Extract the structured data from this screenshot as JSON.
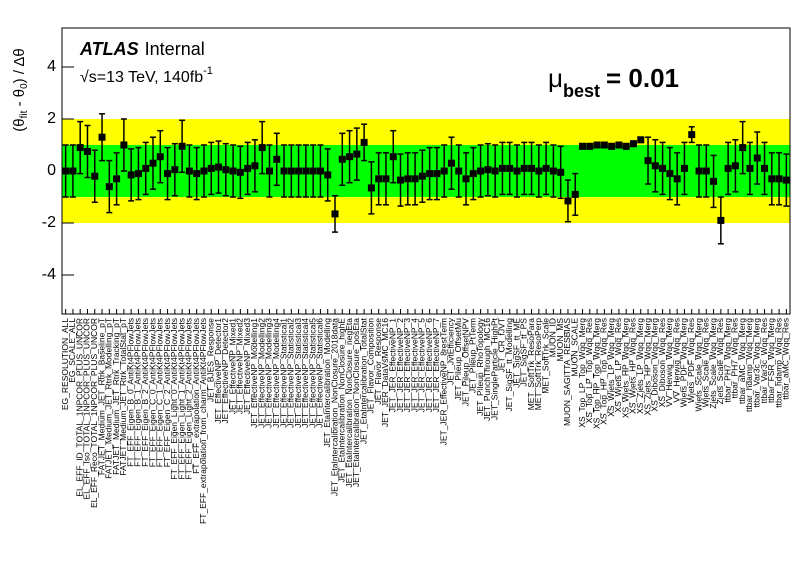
{
  "chart_data": {
    "type": "pull",
    "experiment": "ATLAS",
    "status": "Internal",
    "energy_text": "√s=13 TeV, 140fb",
    "energy_sup": "-1",
    "mu_symbol": "μ",
    "mu_sub": "best",
    "mu_text": "= 0.01",
    "ylabel_parts": [
      "(θ",
      "fit",
      " - θ",
      "0",
      ") / Δθ"
    ],
    "ylim": [
      -5.5,
      5.5
    ],
    "yticks": [
      -4,
      -2,
      0,
      2,
      4
    ],
    "color": "#000000",
    "bands": [
      {
        "lo": -2,
        "hi": 2,
        "color": "#ffff00"
      },
      {
        "lo": -1,
        "hi": 1,
        "color": "#00ff00"
      }
    ],
    "categories": [
      "EG_RESOLUTION_ALL",
      "EG_SCALE_ALL",
      "EL_EFF_ID_TOTAL_1NPCOR_PLUS_UNCOR",
      "EL_EFF_Iso_TOTAL_1NPCOR_PLUS_UNCOR",
      "EL_EFF_Reco_TOTAL_1NPCOR_PLUS_UNCOR",
      "FATJET_Medium_JET_Rtrk_Baseline_pT",
      "FATJET_Medium_JET_Rtrk_Modelling_pT",
      "FATJET_Medium_JET_Rtrk_Tracking_pT",
      "FATJET_Medium_JET_Rtrk_TotalStat_pT",
      "FT_EFF_Eigen_B_0_AntiKt4PFlowJets",
      "FT_EFF_Eigen_B_1_AntiKt4PFlowJets",
      "FT_EFF_Eigen_B_2_AntiKt4PFlowJets",
      "FT_EFF_Eigen_C_0_AntiKt4PFlowJets",
      "FT_EFF_Eigen_C_1_AntiKt4PFlowJets",
      "FT_EFF_Eigen_C_2_AntiKt4PFlowJets",
      "FT_EFF_Eigen_Light_0_AntiKt4PFlowJets",
      "FT_EFF_Eigen_Light_1_AntiKt4PFlowJets",
      "FT_EFF_Eigen_Light_2_AntiKt4PFlowJets",
      "FT_EFF_extrapolation_AntiKt4PFlowJets",
      "FT_EFF_extrapolation_from_charm_AntiKt4PFlowJets",
      "JET_BJES_Response",
      "JET_EffectiveNP_Detector1",
      "JET_EffectiveNP_Detector2",
      "JET_EffectiveNP_Mixed1",
      "JET_EffectiveNP_Mixed2",
      "JET_EffectiveNP_Mixed3",
      "JET_EffectiveNP_Modelling1",
      "JET_EffectiveNP_Modelling2",
      "JET_EffectiveNP_Modelling3",
      "JET_EffectiveNP_Modelling4",
      "JET_EffectiveNP_Statistical1",
      "JET_EffectiveNP_Statistical2",
      "JET_EffectiveNP_Statistical3",
      "JET_EffectiveNP_Statistical4",
      "JET_EffectiveNP_Statistical5",
      "JET_EffectiveNP_Statistical6",
      "JET_EtaIntercalibration_Modelling",
      "JET_EtaIntercalibration_NonClosure_2018data",
      "JET_EtaIntercalibration_NonClosure_highE",
      "JET_EtaIntercalibration_NonClosure_negEta",
      "JET_EtaIntercalibration_NonClosure_posEta",
      "JET_EtaIntercalibration_TotalStat",
      "JET_Flavor_Composition",
      "JET_Flavor_Response",
      "JET_JER_DataVsMC_MC16",
      "JET_JER_EffectiveNP_1",
      "JET_JER_EffectiveNP_2",
      "JET_JER_EffectiveNP_3",
      "JET_JER_EffectiveNP_4",
      "JET_JER_EffectiveNP_5",
      "JET_JER_EffectiveNP_6",
      "JET_JER_EffectiveNP_7",
      "JET_JER_EffectiveNP_8restTerm",
      "JET_JvtEfficiency",
      "JET_Pileup_OffsetMu",
      "JET_Pileup_OffsetNPV",
      "JET_Pileup_PtTerm",
      "JET_Pileup_RhoTopology",
      "JET_PunchThrough_MC16",
      "JET_SingleParticle_HighPt",
      "JET_CR_fJVT",
      "JET_SigSF_tt_Modelling",
      "JET_SigSF_tt_ME",
      "JET_SigSF_tt_PS",
      "MET_SoftTrk_ResoPara",
      "MET_SoftTrk_ResoPerp",
      "MET_SoftTrk_Scale",
      "MUON_ID",
      "MUON_MS",
      "MUON_SAGITTA_RESBIAS",
      "MUON_SCALE",
      "XS_Top_LP_Top_Wqq_Merg",
      "XS_Top_LP_Top_Wqq_Res",
      "XS_Top_HP_Top_Wqq_Merg",
      "XS_Top_HP_Top_Wqq_Res",
      "XS_Wjets_LP_Wqq_Merg",
      "XS_Wjets_LP_Wqq_Res",
      "XS_Wjets_HP_Wqq_Merg",
      "XS_Wjets_HP_Wqq_Res",
      "XS_Zjets_LP_Wqq_Merg",
      "XS_Zjets_HP_Wqq_Merg",
      "XS_Diboson_Wqq_Merg",
      "XS_Diboson_Wqq_Res",
      "VV_Herwig_Wqq_Merg",
      "VV_Herwig_Wqq_Res",
      "Wjets_PDF_Wqq_Merg",
      "Wjets_PDF_Wqq_Res",
      "Wjets_Scale_Wqq_Merg",
      "Wjets_Scale_Wqq_Res",
      "Zjets_Scale_Wqq_Merg",
      "Zjets_Scale_Wqq_Res",
      "ttbar_PH7_Wqq_Merg",
      "ttbar_PH7_Wqq_Res",
      "ttbar_aMC_Wqq_Merg",
      "ttbar_hdamp_Wqq_Merg",
      "ttbar_Var3c_Wqq_Merg",
      "ttbar_Var3c_Wqq_Res",
      "ttbar_FSR_Wqq_Merg",
      "ttbar_hdamp_Wqq_Res",
      "ttbar_aMC_Wqq_Res"
    ],
    "values": [
      0,
      0,
      0.9,
      0.75,
      -0.2,
      1.3,
      -0.6,
      -0.3,
      1.0,
      -0.15,
      -0.1,
      0.1,
      0.3,
      0.55,
      -0.1,
      0.05,
      0.95,
      0.0,
      -0.1,
      0.0,
      0.1,
      0.15,
      0.05,
      0.0,
      -0.05,
      0.1,
      0.2,
      0.9,
      0.0,
      0.45,
      0,
      0,
      0,
      0,
      0,
      0,
      -0.15,
      -1.65,
      0.45,
      0.55,
      0.65,
      1.1,
      -0.65,
      -0.3,
      -0.3,
      0.55,
      -0.35,
      -0.3,
      -0.3,
      -0.2,
      -0.1,
      -0.1,
      0.0,
      0.3,
      0.0,
      -0.3,
      -0.1,
      0,
      0.05,
      0,
      0.1,
      0.1,
      0,
      0.1,
      0.1,
      0,
      0.1,
      0,
      -0.05,
      -1.15,
      -0.9,
      0.95,
      0.95,
      1.0,
      1.0,
      0.95,
      1.0,
      0.95,
      1.05,
      1.2,
      0.4,
      0.2,
      0.1,
      -0.1,
      -0.3,
      0.1,
      1.4,
      0,
      0,
      -0.4,
      -1.9,
      0.1,
      0.2,
      0.9,
      0.1,
      0.5,
      0.1,
      -0.3,
      -0.3,
      -0.35
    ],
    "errors": [
      1,
      1,
      1,
      1,
      1,
      0.9,
      1,
      1,
      1,
      1,
      1,
      1,
      1,
      1,
      1,
      1,
      1,
      1,
      1,
      1,
      1,
      1,
      1,
      1,
      1,
      1,
      1,
      1,
      1,
      1,
      1,
      1,
      1,
      1,
      1,
      1,
      1,
      0.7,
      1,
      1,
      1,
      0.7,
      1,
      1,
      1,
      1,
      1,
      1,
      1,
      1,
      1,
      1,
      1,
      1,
      1,
      1,
      1,
      1,
      1,
      1,
      1,
      1,
      1,
      1,
      1,
      1,
      1,
      1,
      1,
      0.8,
      0.8,
      0.1,
      0.1,
      0.1,
      0.1,
      0.1,
      0.1,
      0.1,
      0.1,
      0.1,
      0.9,
      1,
      1,
      1,
      1,
      1,
      0.3,
      1,
      1,
      1,
      0.9,
      1,
      1,
      1,
      1,
      1,
      1,
      1,
      1,
      1
    ]
  }
}
